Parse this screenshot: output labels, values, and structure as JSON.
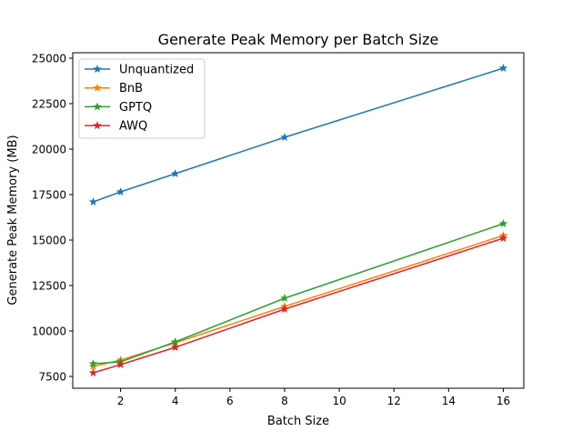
{
  "chart_data": {
    "type": "line",
    "title": "Generate Peak Memory per Batch Size",
    "xlabel": "Batch Size",
    "ylabel": "Generate Peak Memory (MB)",
    "xlim": [
      0.25,
      16.75
    ],
    "ylim": [
      6850,
      25300
    ],
    "xticks": [
      2,
      4,
      6,
      8,
      10,
      12,
      14,
      16
    ],
    "yticks": [
      7500,
      10000,
      12500,
      15000,
      17500,
      20000,
      22500,
      25000
    ],
    "grid": false,
    "legend_position": "top-left",
    "marker": "star",
    "x": [
      1,
      2,
      4,
      8,
      16
    ],
    "series": [
      {
        "name": "Unquantized",
        "color": "#1f77b4",
        "values": [
          17100,
          17650,
          18650,
          20650,
          24450
        ]
      },
      {
        "name": "BnB",
        "color": "#ff7f0e",
        "values": [
          8050,
          8400,
          9350,
          11350,
          15250
        ]
      },
      {
        "name": "GPTQ",
        "color": "#2ca02c",
        "values": [
          8200,
          8300,
          9400,
          11800,
          15900
        ]
      },
      {
        "name": "AWQ",
        "color": "#d62728",
        "values": [
          7700,
          8150,
          9100,
          11200,
          15100
        ]
      }
    ]
  }
}
